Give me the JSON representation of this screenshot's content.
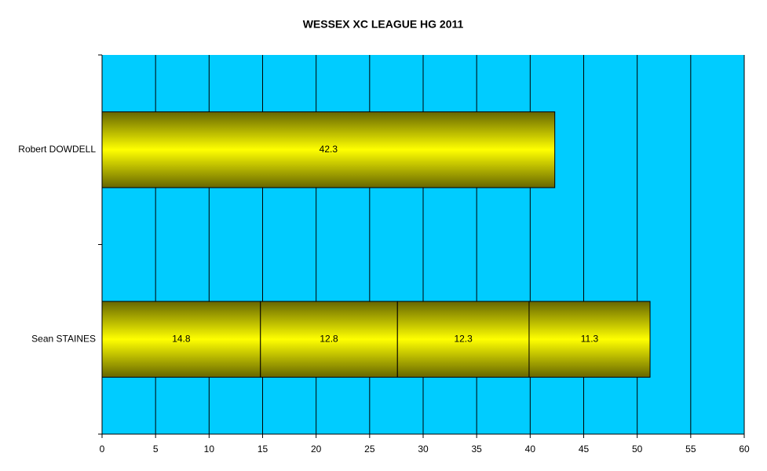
{
  "chart_data": {
    "type": "stacked_barh",
    "title": "WESSEX XC LEAGUE HG 2011",
    "categories": [
      "Robert DOWDELL",
      "Sean STAINES"
    ],
    "series": [
      {
        "color": "#ffff00",
        "values": [
          42.3,
          14.8
        ]
      },
      {
        "color": "#ffff00",
        "values": [
          null,
          12.8
        ]
      },
      {
        "color": "#ffff00",
        "values": [
          null,
          12.3
        ]
      },
      {
        "color": "#ffff00",
        "values": [
          null,
          11.3
        ]
      }
    ],
    "xlim": [
      0,
      60
    ],
    "xticks": [
      0,
      5,
      10,
      15,
      20,
      25,
      30,
      35,
      40,
      45,
      50,
      55,
      60
    ],
    "grid": true,
    "plot_color": "#00ccff"
  }
}
